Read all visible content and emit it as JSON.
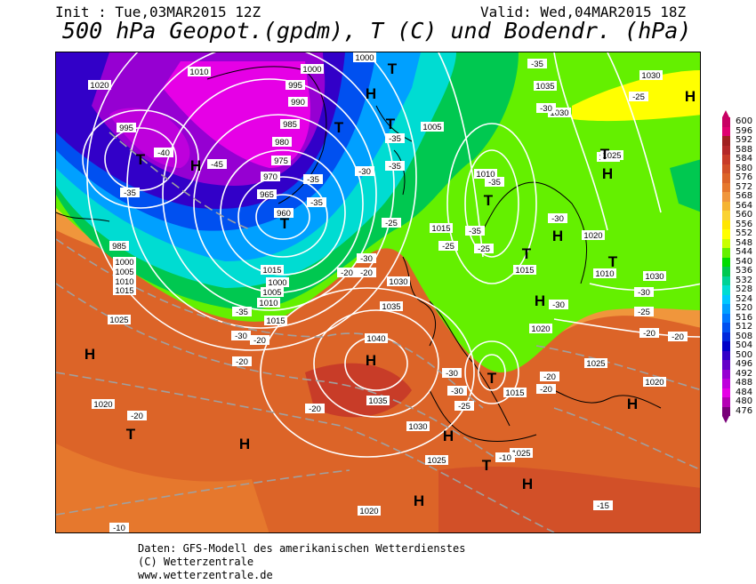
{
  "header": {
    "init": "Init : Tue,03MAR2015 12Z",
    "valid": "Valid: Wed,04MAR2015 18Z",
    "title": "500 hPa Geopot.(gpdm), T (C) und Bodendr. (hPa)"
  },
  "footer": {
    "line1": "Daten: GFS-Modell des amerikanischen Wetterdienstes",
    "line2": "(C) Wetterzentrale",
    "line3": "www.wetterzentrale.de"
  },
  "legend": {
    "labels": [
      "600",
      "596",
      "592",
      "588",
      "584",
      "580",
      "576",
      "572",
      "568",
      "564",
      "560",
      "556",
      "552",
      "548",
      "544",
      "540",
      "536",
      "532",
      "528",
      "524",
      "520",
      "516",
      "512",
      "508",
      "504",
      "500",
      "496",
      "492",
      "488",
      "484",
      "480",
      "476"
    ],
    "colors": [
      "#c80064",
      "#e00070",
      "#a02020",
      "#b42828",
      "#c83c28",
      "#d25028",
      "#dc6428",
      "#e6782d",
      "#f0963c",
      "#f5b432",
      "#fad232",
      "#ffe600",
      "#ffff00",
      "#c8ff00",
      "#64f000",
      "#00dc00",
      "#00c850",
      "#00d296",
      "#00dcd2",
      "#00c8ff",
      "#00a0ff",
      "#0078ff",
      "#0050f0",
      "#0028dc",
      "#0000c8",
      "#3200c8",
      "#6400c8",
      "#9600d2",
      "#be00dc",
      "#e600e6",
      "#b400b4",
      "#780078"
    ]
  },
  "pressure_labels": [
    "1020",
    "1010",
    "1000",
    "995",
    "990",
    "985",
    "980",
    "975",
    "970",
    "965",
    "960",
    "1005",
    "1015",
    "1025",
    "1030",
    "1035",
    "1040"
  ],
  "temperature_labels": [
    "-35",
    "-40",
    "-45",
    "-30",
    "-25",
    "-20",
    "-15",
    "-10"
  ],
  "map": {
    "high_symbol": "H",
    "low_symbol": "T",
    "centers": [
      {
        "type": "H"
      },
      {
        "type": "H"
      },
      {
        "type": "H"
      },
      {
        "type": "H"
      },
      {
        "type": "H"
      },
      {
        "type": "H"
      },
      {
        "type": "H"
      },
      {
        "type": "H"
      },
      {
        "type": "H"
      },
      {
        "type": "H"
      },
      {
        "type": "H"
      },
      {
        "type": "H"
      },
      {
        "type": "H"
      },
      {
        "type": "T"
      },
      {
        "type": "T"
      },
      {
        "type": "T"
      },
      {
        "type": "T"
      },
      {
        "type": "T"
      },
      {
        "type": "T"
      },
      {
        "type": "T"
      },
      {
        "type": "T"
      },
      {
        "type": "T"
      },
      {
        "type": "T"
      },
      {
        "type": "T"
      },
      {
        "type": "T"
      }
    ],
    "pressure_boxes": [
      "1020",
      "1010",
      "1000",
      "995",
      "990",
      "985",
      "980",
      "975",
      "970",
      "965",
      "960",
      "1000",
      "1005",
      "1010",
      "1015",
      "1025",
      "1030",
      "1035",
      "1040",
      "1035",
      "1030",
      "1025",
      "1020",
      "1015",
      "1010",
      "1005",
      "1000",
      "995",
      "985",
      "1020",
      "1015",
      "1010",
      "1005",
      "1000",
      "1030",
      "1025",
      "1020",
      "1015",
      "1010",
      "1020",
      "1025",
      "1030",
      "1035",
      "1015",
      "1030",
      "1025",
      "1020",
      "1015",
      "1025"
    ],
    "temp_boxes": [
      "-40",
      "-45",
      "-35",
      "-35",
      "-30",
      "-35",
      "-35",
      "-35",
      "-30",
      "-25",
      "-20",
      "-20",
      "-35",
      "-30",
      "-20",
      "-25",
      "-20",
      "-25",
      "-30",
      "-35",
      "-30",
      "-35",
      "-25",
      "-35",
      "-30",
      "-30",
      "-25",
      "-20",
      "-15",
      "-20",
      "-20",
      "-25",
      "-20",
      "-10",
      "-15",
      "-30",
      "-30",
      "-25",
      "-20"
    ]
  }
}
